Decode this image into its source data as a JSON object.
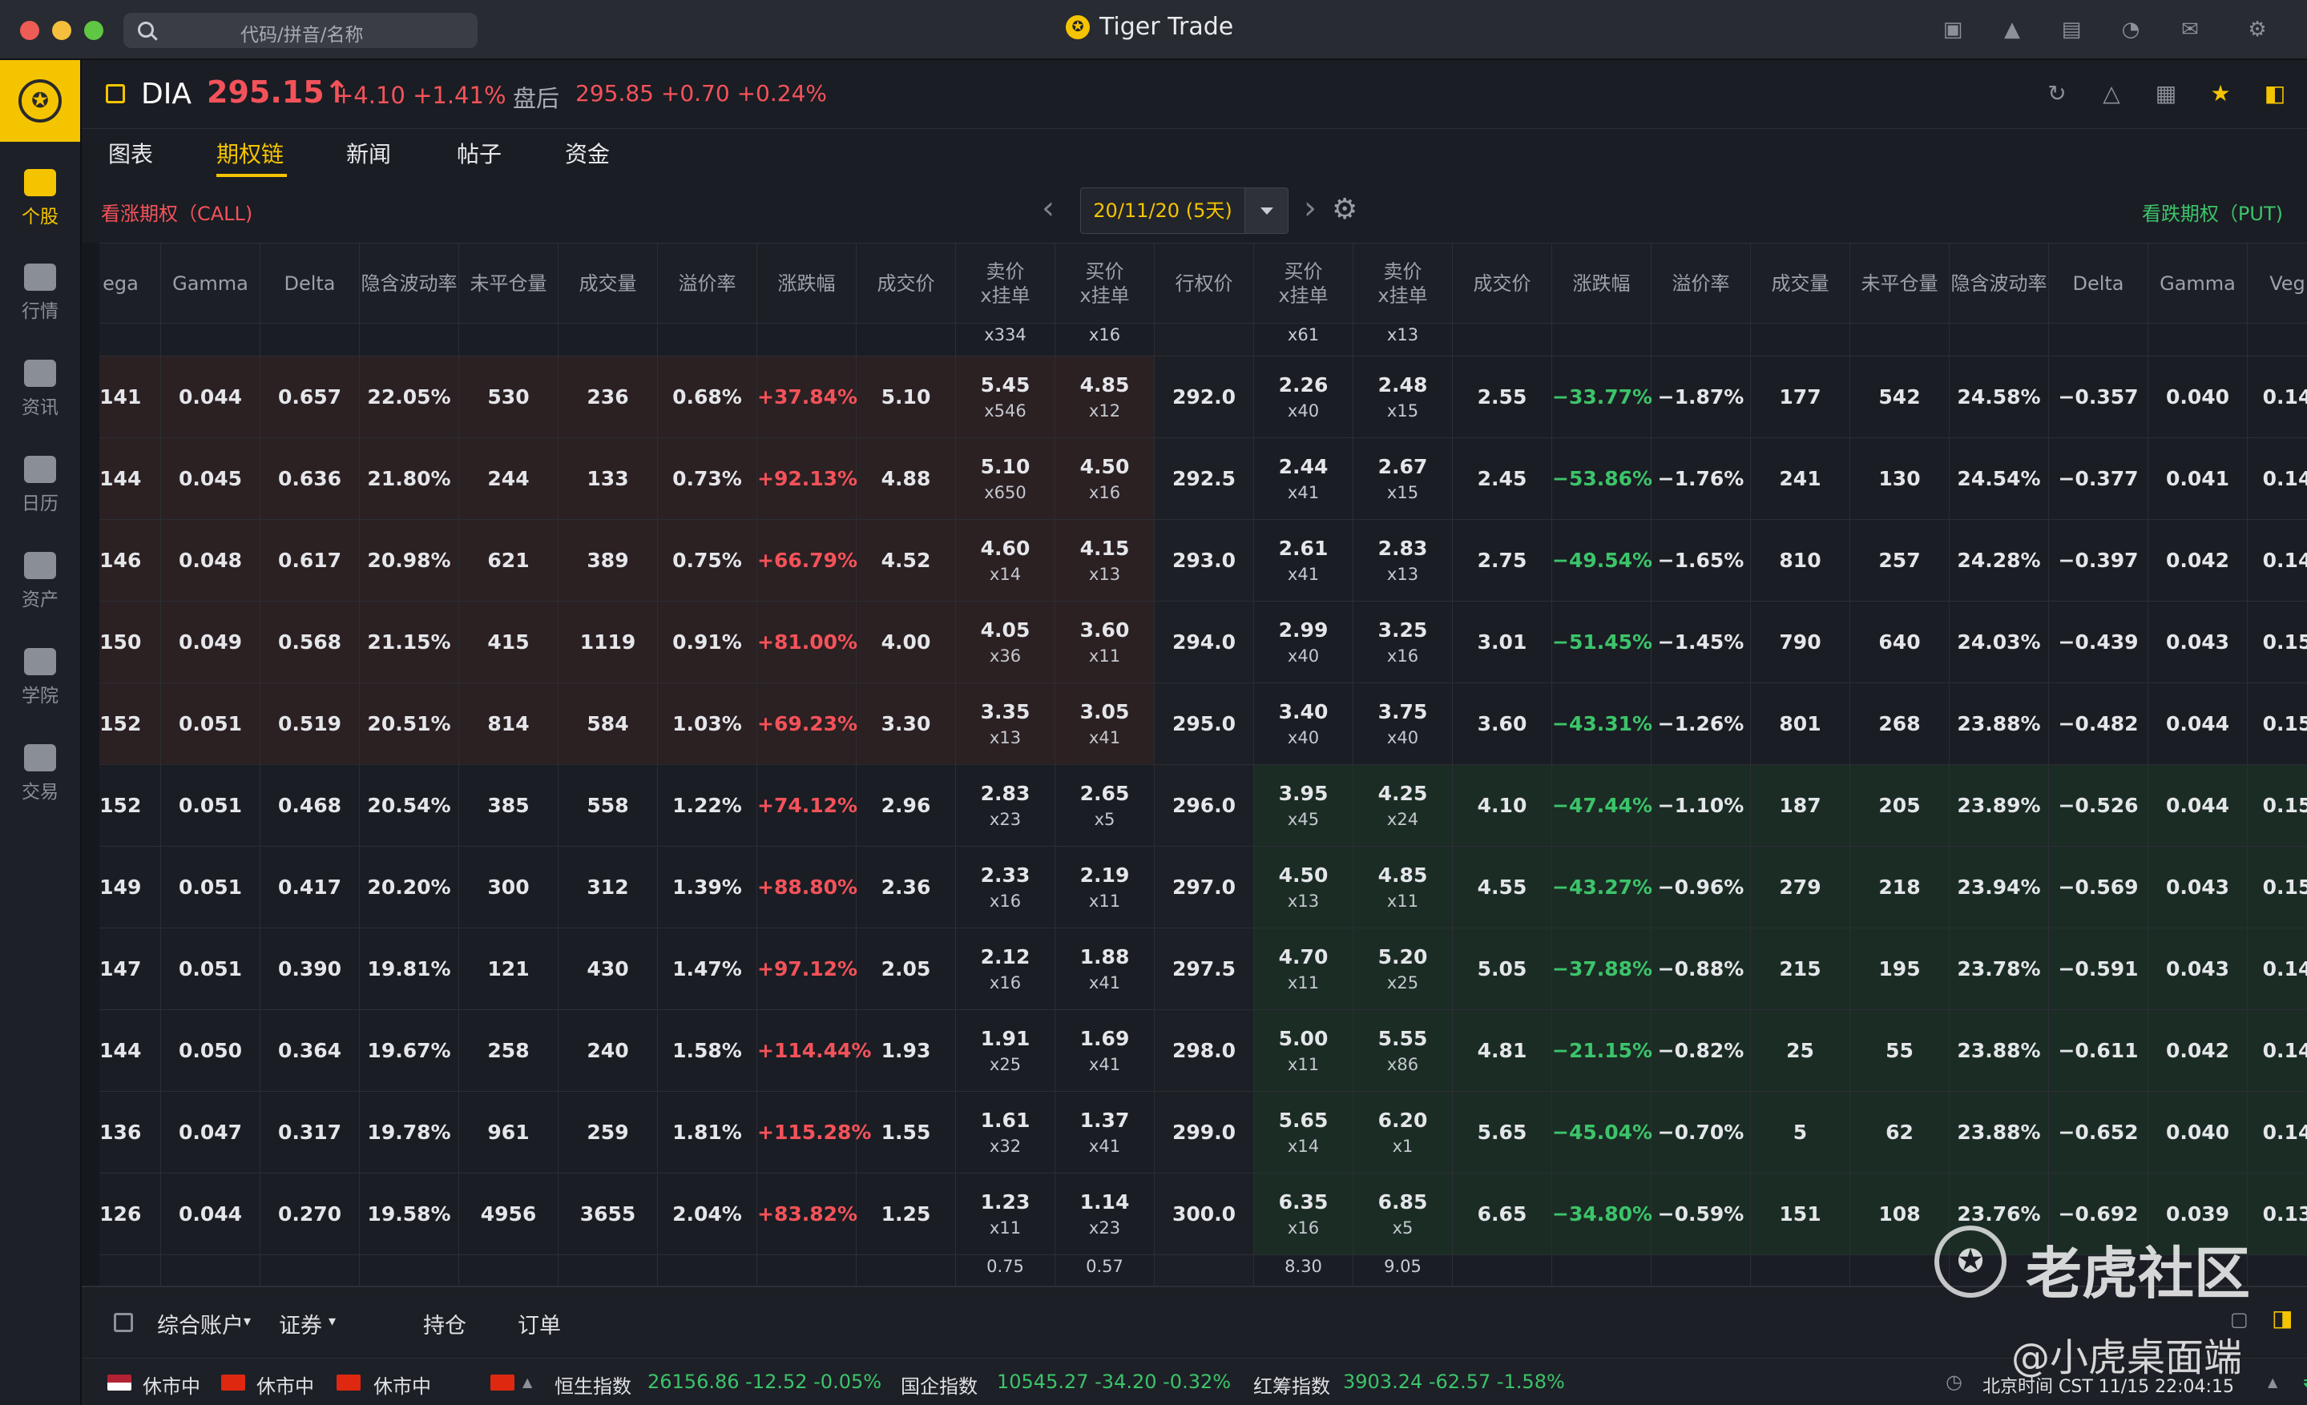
{
  "app": {
    "title": "Tiger Trade",
    "search_placeholder": "代码/拼音/名称"
  },
  "sidebar": [
    {
      "label": "个股",
      "icon": "stock-chart-icon"
    },
    {
      "label": "行情",
      "icon": "market-icon"
    },
    {
      "label": "资讯",
      "icon": "news-icon"
    },
    {
      "label": "日历",
      "icon": "calendar-icon"
    },
    {
      "label": "资产",
      "icon": "wallet-icon"
    },
    {
      "label": "学院",
      "icon": "video-icon"
    },
    {
      "label": "交易",
      "icon": "trade-icon"
    }
  ],
  "quote": {
    "symbol": "DIA",
    "price": "295.15↑",
    "change": "+4.10 +1.41%",
    "after_label": "盘后",
    "after_value": "295.85 +0.70 +0.24%"
  },
  "tabs": [
    "图表",
    "期权链",
    "新闻",
    "帖子",
    "资金"
  ],
  "chain": {
    "call_label": "看涨期权（CALL)",
    "put_label": "看跌期权（PUT)",
    "expiry": "20/11/20 (5天)"
  },
  "columns": [
    "ega",
    "Gamma",
    "Delta",
    "隐含波动率",
    "未平仓量",
    "成交量",
    "溢价率",
    "涨跌幅",
    "成交价",
    "卖价\nx挂单",
    "买价\nx挂单",
    "行权价",
    "买价\nx挂单",
    "卖价\nx挂单",
    "成交价",
    "涨跌幅",
    "溢价率",
    "成交量",
    "未平仓量",
    "隐含波动率",
    "Delta",
    "Gamma",
    "Veg"
  ],
  "top_partial": [
    "",
    "",
    "",
    "",
    "",
    "",
    "",
    "",
    "",
    "x334",
    "x16",
    "",
    "x61",
    "x13",
    "",
    "",
    "",
    "",
    "",
    "",
    "",
    "",
    ""
  ],
  "rows": [
    [
      "141",
      "0.044",
      "0.657",
      "22.05%",
      "530",
      "236",
      "0.68%",
      "+37.84%",
      "5.10",
      "5.45",
      "x546",
      "4.85",
      "x12",
      "292.0",
      "2.26",
      "x40",
      "2.48",
      "x15",
      "2.55",
      "−33.77%",
      "−1.87%",
      "177",
      "542",
      "24.58%",
      "−0.357",
      "0.040",
      "0.14"
    ],
    [
      "144",
      "0.045",
      "0.636",
      "21.80%",
      "244",
      "133",
      "0.73%",
      "+92.13%",
      "4.88",
      "5.10",
      "x650",
      "4.50",
      "x16",
      "292.5",
      "2.44",
      "x41",
      "2.67",
      "x15",
      "2.45",
      "−53.86%",
      "−1.76%",
      "241",
      "130",
      "24.54%",
      "−0.377",
      "0.041",
      "0.14"
    ],
    [
      "146",
      "0.048",
      "0.617",
      "20.98%",
      "621",
      "389",
      "0.75%",
      "+66.79%",
      "4.52",
      "4.60",
      "x14",
      "4.15",
      "x13",
      "293.0",
      "2.61",
      "x41",
      "2.83",
      "x13",
      "2.75",
      "−49.54%",
      "−1.65%",
      "810",
      "257",
      "24.28%",
      "−0.397",
      "0.042",
      "0.14"
    ],
    [
      "150",
      "0.049",
      "0.568",
      "21.15%",
      "415",
      "1119",
      "0.91%",
      "+81.00%",
      "4.00",
      "4.05",
      "x36",
      "3.60",
      "x11",
      "294.0",
      "2.99",
      "x40",
      "3.25",
      "x16",
      "3.01",
      "−51.45%",
      "−1.45%",
      "790",
      "640",
      "24.03%",
      "−0.439",
      "0.043",
      "0.15"
    ],
    [
      "152",
      "0.051",
      "0.519",
      "20.51%",
      "814",
      "584",
      "1.03%",
      "+69.23%",
      "3.30",
      "3.35",
      "x13",
      "3.05",
      "x41",
      "295.0",
      "3.40",
      "x40",
      "3.75",
      "x40",
      "3.60",
      "−43.31%",
      "−1.26%",
      "801",
      "268",
      "23.88%",
      "−0.482",
      "0.044",
      "0.15"
    ],
    [
      "152",
      "0.051",
      "0.468",
      "20.54%",
      "385",
      "558",
      "1.22%",
      "+74.12%",
      "2.96",
      "2.83",
      "x23",
      "2.65",
      "x5",
      "296.0",
      "3.95",
      "x45",
      "4.25",
      "x24",
      "4.10",
      "−47.44%",
      "−1.10%",
      "187",
      "205",
      "23.89%",
      "−0.526",
      "0.044",
      "0.15"
    ],
    [
      "149",
      "0.051",
      "0.417",
      "20.20%",
      "300",
      "312",
      "1.39%",
      "+88.80%",
      "2.36",
      "2.33",
      "x16",
      "2.19",
      "x11",
      "297.0",
      "4.50",
      "x13",
      "4.85",
      "x11",
      "4.55",
      "−43.27%",
      "−0.96%",
      "279",
      "218",
      "23.94%",
      "−0.569",
      "0.043",
      "0.15"
    ],
    [
      "147",
      "0.051",
      "0.390",
      "19.81%",
      "121",
      "430",
      "1.47%",
      "+97.12%",
      "2.05",
      "2.12",
      "x16",
      "1.88",
      "x41",
      "297.5",
      "4.70",
      "x11",
      "5.20",
      "x25",
      "5.05",
      "−37.88%",
      "−0.88%",
      "215",
      "195",
      "23.78%",
      "−0.591",
      "0.043",
      "0.14"
    ],
    [
      "144",
      "0.050",
      "0.364",
      "19.67%",
      "258",
      "240",
      "1.58%",
      "+114.44%",
      "1.93",
      "1.91",
      "x25",
      "1.69",
      "x41",
      "298.0",
      "5.00",
      "x11",
      "5.55",
      "x86",
      "4.81",
      "−21.15%",
      "−0.82%",
      "25",
      "55",
      "23.88%",
      "−0.611",
      "0.042",
      "0.14"
    ],
    [
      "136",
      "0.047",
      "0.317",
      "19.78%",
      "961",
      "259",
      "1.81%",
      "+115.28%",
      "1.55",
      "1.61",
      "x32",
      "1.37",
      "x41",
      "299.0",
      "5.65",
      "x14",
      "6.20",
      "x1",
      "5.65",
      "−45.04%",
      "−0.70%",
      "5",
      "62",
      "23.88%",
      "−0.652",
      "0.040",
      "0.14"
    ],
    [
      "126",
      "0.044",
      "0.270",
      "19.58%",
      "4956",
      "3655",
      "2.04%",
      "+83.82%",
      "1.25",
      "1.23",
      "x11",
      "1.14",
      "x23",
      "300.0",
      "6.35",
      "x16",
      "6.85",
      "x5",
      "6.65",
      "−34.80%",
      "−0.59%",
      "151",
      "108",
      "23.76%",
      "−0.692",
      "0.039",
      "0.13"
    ]
  ],
  "bottom_partial": [
    "",
    "",
    "",
    "",
    "",
    "",
    "",
    "",
    "",
    "0.75",
    "0.57",
    "",
    "8.30",
    "9.05",
    "",
    "",
    "",
    "",
    "",
    "",
    "",
    "",
    ""
  ],
  "account": {
    "account": "综合账户",
    "securities": "证券",
    "positions": "持仓",
    "orders": "订单"
  },
  "status": {
    "us": "休市中",
    "hk": "休市中",
    "cn": "休市中",
    "hsi_label": "恒生指数",
    "hsi": "26156.86 -12.52 -0.05%",
    "hscei_label": "国企指数",
    "hscei": "10545.27 -34.20 -0.32%",
    "red_label": "红筹指数",
    "red": "3903.24 -62.57 -1.58%",
    "time": "北京时间 CST 11/15 22:04:15"
  },
  "watermark": {
    "brand": "老虎社区",
    "handle": "@小虎桌面端"
  },
  "colors": {
    "up": "#f4525a",
    "down": "#3cc46a",
    "accent": "#f5c400",
    "itm_call": "#2b2022",
    "itm_put": "#1b2c24"
  }
}
